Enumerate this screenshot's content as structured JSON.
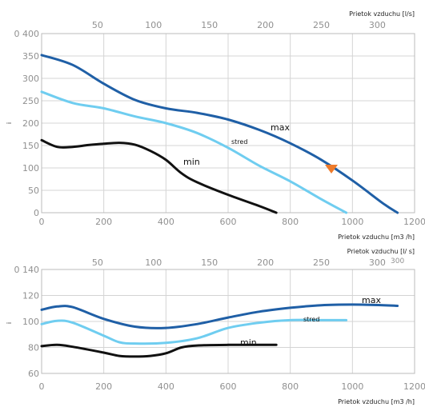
{
  "chart_data": [
    {
      "type": "line",
      "ylabel": "i",
      "xlabel": "Prietok vzduchu [m3 /h]",
      "x_top_label": "Prietok vzduchu [l/s]",
      "xlim": [
        0,
        1200
      ],
      "ylim": [
        0,
        400
      ],
      "x_ticks": [
        "0",
        "200",
        "400",
        "600",
        "800",
        "1000",
        "1200"
      ],
      "y_ticks": [
        "0",
        "50",
        "100",
        "150",
        "200",
        "250",
        "300",
        "350",
        "0 400"
      ],
      "x_top_ticks": [
        "50",
        "100",
        "150",
        "200",
        "250",
        "300"
      ],
      "grid": true,
      "series": [
        {
          "name": "max",
          "color": "#1f5fa6",
          "x": [
            0,
            100,
            200,
            300,
            400,
            500,
            600,
            700,
            800,
            900,
            1000,
            1100,
            1145
          ],
          "y": [
            352,
            330,
            288,
            252,
            233,
            223,
            208,
            185,
            155,
            118,
            72,
            20,
            0
          ]
        },
        {
          "name": "stred",
          "color": "#6fcdf0",
          "x": [
            0,
            100,
            200,
            300,
            400,
            500,
            600,
            700,
            800,
            900,
            980
          ],
          "y": [
            270,
            245,
            233,
            215,
            200,
            178,
            145,
            105,
            70,
            30,
            0
          ]
        },
        {
          "name": "min",
          "color": "#111111",
          "x": [
            0,
            50,
            100,
            150,
            200,
            250,
            300,
            350,
            400,
            450,
            500,
            600,
            700,
            755
          ],
          "y": [
            162,
            147,
            147,
            151,
            154,
            156,
            152,
            138,
            118,
            88,
            68,
            40,
            15,
            0
          ]
        }
      ],
      "marker": {
        "shape": "down-triangle",
        "color": "#ee7a2a",
        "x": 935,
        "y": 100
      }
    },
    {
      "type": "line",
      "ylabel": "i",
      "xlabel": "Prietok vzduchu [m3 /h]",
      "x_top_label": "Prietok vzduchu [l/ s]",
      "xlim": [
        0,
        1200
      ],
      "ylim": [
        60,
        140
      ],
      "x_ticks": [
        "0",
        "200",
        "400",
        "600",
        "800",
        "1000",
        "1200"
      ],
      "y_ticks": [
        "60",
        "80",
        "100",
        "120",
        "0 140"
      ],
      "x_top_ticks": [
        "50",
        "100",
        "150",
        "200",
        "250",
        "300"
      ],
      "grid": true,
      "series": [
        {
          "name": "max",
          "color": "#1f5fa6",
          "x": [
            0,
            50,
            100,
            200,
            300,
            400,
            500,
            600,
            700,
            800,
            900,
            1000,
            1100,
            1145
          ],
          "y": [
            109,
            111.5,
            111,
            102,
            96,
            95,
            98,
            103,
            107.5,
            110.5,
            112.5,
            113,
            112.5,
            112
          ]
        },
        {
          "name": "stred",
          "color": "#6fcdf0",
          "x": [
            0,
            50,
            100,
            200,
            250,
            300,
            400,
            500,
            600,
            700,
            800,
            900,
            980
          ],
          "y": [
            98,
            100.5,
            99,
            89,
            84,
            83,
            83.5,
            87,
            95,
            99,
            101,
            101,
            101
          ]
        },
        {
          "name": "min",
          "color": "#111111",
          "x": [
            0,
            50,
            100,
            200,
            250,
            300,
            350,
            400,
            450,
            500,
            600,
            700,
            755
          ],
          "y": [
            81,
            82,
            80.5,
            76,
            73.5,
            73,
            73.5,
            75.5,
            80,
            81.5,
            82,
            82,
            82
          ]
        }
      ]
    }
  ],
  "labels": {
    "top": {
      "max": "max",
      "stred": "stred",
      "min": "min"
    },
    "bottom": {
      "max": "max",
      "stred": "stred",
      "min": "min",
      "top_axis_suffix": "300"
    }
  }
}
